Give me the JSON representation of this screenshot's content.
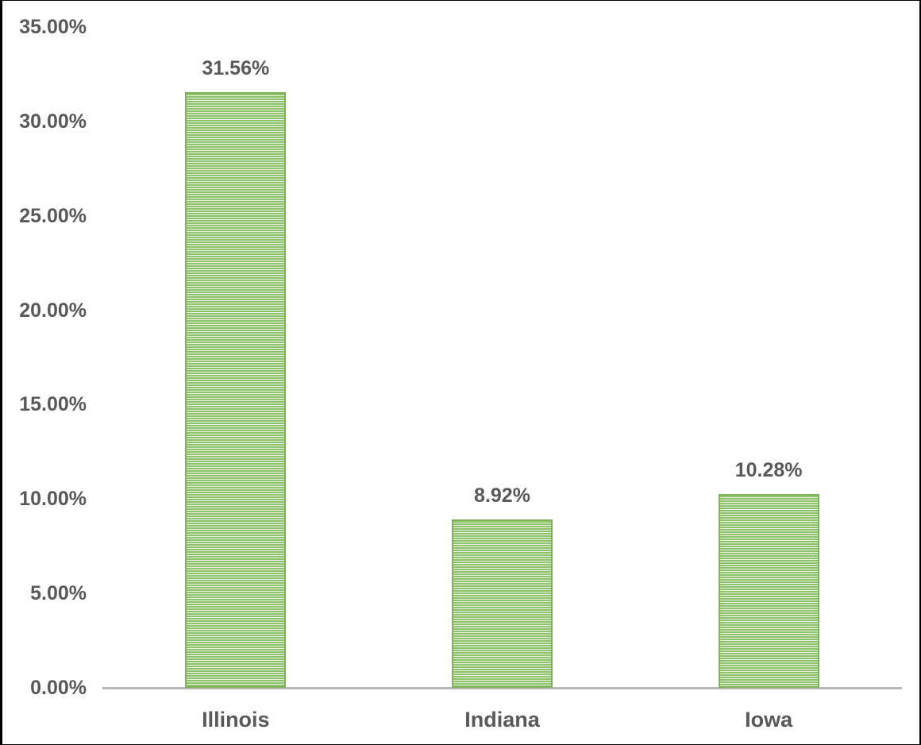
{
  "chart_data": {
    "type": "bar",
    "title": "",
    "categories": [
      "Illinois",
      "Indiana",
      "Iowa"
    ],
    "values": [
      31.56,
      8.92,
      10.28
    ],
    "value_labels": [
      "31.56%",
      "8.92%",
      "10.28%"
    ],
    "xlabel": "",
    "ylabel": "",
    "ylim": [
      0,
      35
    ],
    "yticks": [
      0,
      5,
      10,
      15,
      20,
      25,
      30,
      35
    ],
    "ytick_labels": [
      "0.00%",
      "5.00%",
      "10.00%",
      "15.00%",
      "20.00%",
      "25.00%",
      "30.00%",
      "35.00%"
    ],
    "grid": "off",
    "legend": "none",
    "bar_fill_pattern": "light-horizontal-stripes",
    "colors": {
      "bar_green": "#8cc36a",
      "bar_stripe_light": "#e9f2e0",
      "bar_border": "#7db457",
      "axis_line": "#b7b7b7",
      "label_text": "#595959",
      "background": "#ffffff",
      "frame_border": "#000000"
    }
  }
}
